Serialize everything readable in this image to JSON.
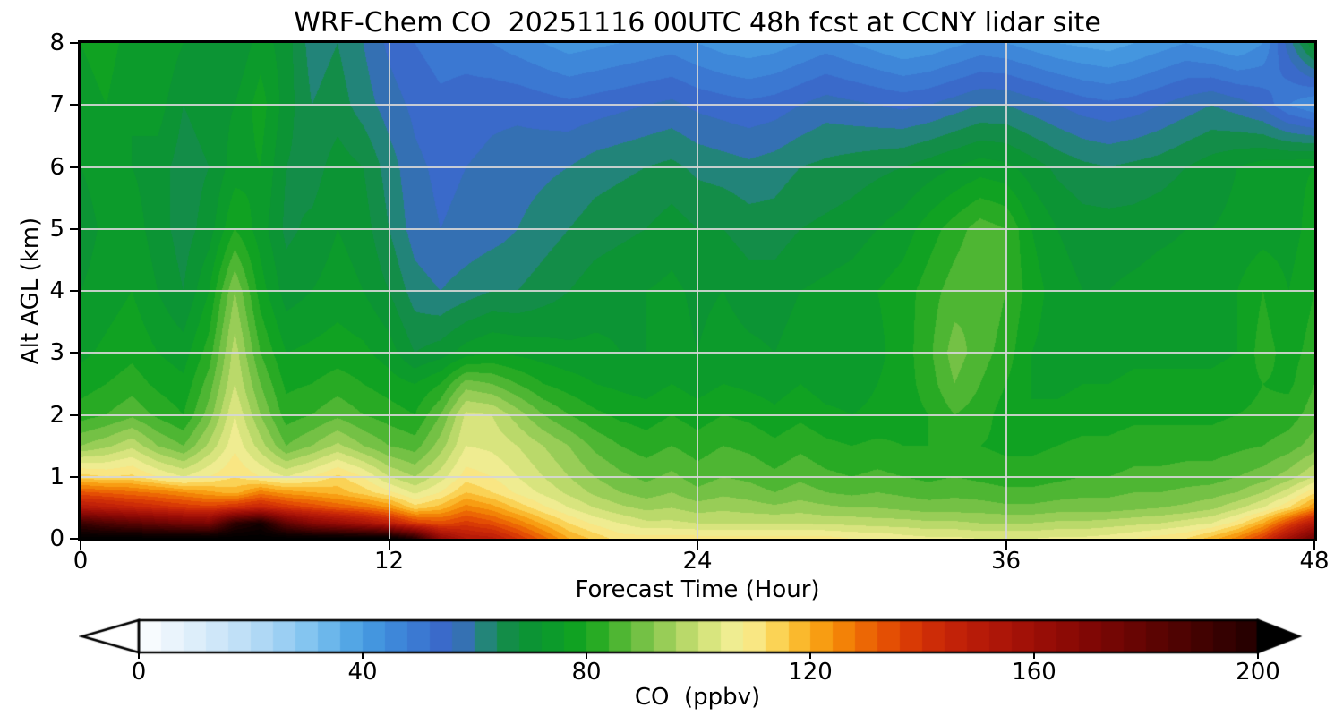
{
  "title": "WRF-Chem CO  20251116 00UTC 48h fcst at CCNY lidar site",
  "axes": {
    "x": {
      "label": "Forecast Time (Hour)",
      "ticks": [
        0,
        12,
        24,
        36,
        48
      ],
      "range": [
        0,
        48
      ]
    },
    "y": {
      "label": "Alt AGL (km)",
      "ticks": [
        0,
        1,
        2,
        3,
        4,
        5,
        6,
        7,
        8
      ],
      "range": [
        0,
        8
      ]
    }
  },
  "colorbar": {
    "label": "CO  (ppbv)",
    "ticks": [
      0,
      40,
      80,
      120,
      160,
      200
    ],
    "range": [
      0,
      200
    ],
    "extend": "both",
    "under_color": "#ffffff",
    "over_color": "#000000",
    "band_step_ppbv": 4
  },
  "colors": {
    "background": "#ffffff",
    "text": "#000000",
    "grid": "#d6d6d6",
    "axis": "#000000"
  },
  "chart_data": {
    "type": "heatmap",
    "title": "WRF-Chem CO  20251116 00UTC 48h fcst at CCNY lidar site",
    "xlabel": "Forecast Time (Hour)",
    "ylabel": "Alt AGL (km)",
    "values_unit": "ppbv",
    "xlim": [
      0,
      48
    ],
    "ylim": [
      0,
      8
    ],
    "grid": {
      "x_hours": [
        12,
        24,
        36
      ],
      "y_alt_km": [
        1,
        2,
        3,
        4,
        5,
        6,
        7
      ]
    },
    "x_hours": [
      0,
      1,
      2,
      3,
      4,
      5,
      6,
      7,
      8,
      9,
      10,
      11,
      12,
      13,
      14,
      15,
      16,
      17,
      18,
      19,
      20,
      21,
      22,
      23,
      24,
      25,
      26,
      27,
      28,
      29,
      30,
      31,
      32,
      33,
      34,
      35,
      36,
      37,
      38,
      39,
      40,
      41,
      42,
      43,
      44,
      45,
      46,
      47,
      48
    ],
    "y_alt_km": [
      0,
      0.25,
      0.5,
      0.75,
      1,
      1.5,
      2,
      2.5,
      3,
      4,
      5,
      6,
      7,
      8
    ],
    "co_ppbv": [
      [
        215,
        215,
        215,
        215,
        215,
        215,
        215,
        215,
        215,
        215,
        215,
        215,
        215,
        200,
        165,
        152,
        150,
        140,
        130,
        120,
        115,
        110,
        110,
        110,
        110,
        110,
        110,
        110,
        110,
        110,
        108,
        108,
        106,
        105,
        105,
        104,
        104,
        104,
        105,
        105,
        106,
        108,
        110,
        112,
        118,
        126,
        138,
        158,
        178
      ],
      [
        192,
        186,
        182,
        178,
        174,
        172,
        196,
        204,
        180,
        168,
        162,
        156,
        148,
        138,
        134,
        138,
        134,
        127,
        119,
        112,
        107,
        104,
        101,
        101,
        100,
        100,
        100,
        100,
        100,
        99,
        99,
        98,
        98,
        97,
        97,
        96,
        96,
        96,
        97,
        97,
        98,
        99,
        100,
        102,
        104,
        110,
        120,
        136,
        152
      ],
      [
        152,
        149,
        146,
        143,
        140,
        138,
        142,
        146,
        140,
        136,
        132,
        129,
        124,
        114,
        118,
        126,
        122,
        115,
        109,
        104,
        100,
        97,
        95,
        96,
        94,
        95,
        94,
        93,
        94,
        93,
        92,
        92,
        91,
        90,
        90,
        90,
        89,
        89,
        90,
        90,
        90,
        91,
        92,
        93,
        95,
        99,
        104,
        112,
        124
      ],
      [
        133,
        131,
        129,
        127,
        124,
        121,
        118,
        126,
        122,
        120,
        118,
        114,
        109,
        103,
        108,
        116,
        112,
        107,
        103,
        99,
        95,
        92,
        90,
        92,
        89,
        91,
        90,
        88,
        90,
        88,
        87,
        88,
        87,
        86,
        87,
        86,
        85,
        85,
        86,
        87,
        87,
        88,
        88,
        89,
        90,
        92,
        96,
        102,
        111
      ],
      [
        114,
        112,
        113,
        108,
        104,
        108,
        112,
        108,
        104,
        108,
        113,
        108,
        100,
        96,
        102,
        110,
        108,
        104,
        100,
        96,
        92,
        89,
        87,
        89,
        86,
        88,
        87,
        85,
        87,
        85,
        84,
        85,
        84,
        83,
        84,
        83,
        82,
        82,
        83,
        84,
        84,
        85,
        85,
        86,
        86,
        88,
        90,
        94,
        100
      ],
      [
        92,
        95,
        99,
        92,
        88,
        97,
        107,
        98,
        88,
        92,
        97,
        92,
        88,
        86,
        94,
        104,
        103,
        100,
        96,
        92,
        87,
        84,
        82,
        84,
        82,
        84,
        83,
        81,
        83,
        81,
        80,
        81,
        80,
        80,
        81,
        80,
        79,
        79,
        80,
        81,
        81,
        82,
        82,
        82,
        82,
        83,
        84,
        86,
        90
      ],
      [
        82,
        84,
        87,
        83,
        80,
        90,
        104,
        92,
        82,
        84,
        87,
        84,
        82,
        80,
        88,
        101,
        100,
        94,
        88,
        84,
        81,
        79,
        78,
        80,
        78,
        80,
        79,
        77,
        79,
        77,
        76,
        77,
        78,
        80,
        84,
        82,
        78,
        76,
        77,
        78,
        78,
        79,
        79,
        79,
        79,
        80,
        81,
        82,
        86
      ],
      [
        78,
        80,
        82,
        79,
        77,
        86,
        100,
        88,
        79,
        80,
        82,
        80,
        78,
        76,
        80,
        90,
        88,
        84,
        80,
        78,
        76,
        75,
        74,
        76,
        74,
        76,
        75,
        74,
        76,
        74,
        74,
        76,
        78,
        82,
        88,
        84,
        80,
        76,
        75,
        76,
        76,
        77,
        77,
        77,
        77,
        78,
        80,
        79,
        84
      ],
      [
        75,
        77,
        79,
        76,
        74,
        82,
        98,
        84,
        76,
        77,
        78,
        77,
        74,
        68,
        70,
        74,
        76,
        75,
        74,
        73,
        73,
        72,
        72,
        74,
        72,
        74,
        73,
        72,
        74,
        73,
        73,
        75,
        78,
        83,
        90,
        86,
        82,
        76,
        74,
        74,
        74,
        75,
        75,
        75,
        75,
        76,
        82,
        78,
        82
      ],
      [
        72,
        74,
        76,
        72,
        68,
        76,
        92,
        78,
        70,
        72,
        74,
        72,
        68,
        62,
        60,
        62,
        64,
        64,
        66,
        68,
        70,
        71,
        72,
        73,
        71,
        72,
        70,
        70,
        72,
        73,
        74,
        76,
        78,
        82,
        86,
        88,
        84,
        78,
        74,
        72,
        72,
        73,
        74,
        74,
        74,
        76,
        80,
        76,
        80
      ],
      [
        70,
        73,
        74,
        70,
        66,
        70,
        80,
        74,
        67,
        69,
        72,
        70,
        64,
        58,
        56,
        57,
        58,
        60,
        62,
        64,
        66,
        67,
        68,
        70,
        68,
        68,
        66,
        66,
        68,
        69,
        70,
        72,
        74,
        78,
        82,
        86,
        84,
        76,
        72,
        70,
        70,
        70,
        71,
        72,
        72,
        73,
        74,
        74,
        78
      ],
      [
        72,
        74,
        72,
        70,
        66,
        68,
        74,
        76,
        68,
        66,
        70,
        68,
        62,
        57,
        55,
        56,
        57,
        58,
        59,
        60,
        62,
        63,
        64,
        65,
        63,
        62,
        61,
        62,
        64,
        65,
        66,
        67,
        68,
        70,
        72,
        74,
        73,
        70,
        67,
        65,
        64,
        65,
        66,
        68,
        70,
        72,
        74,
        75,
        76
      ],
      [
        74,
        76,
        72,
        74,
        68,
        70,
        72,
        78,
        70,
        64,
        66,
        62,
        58,
        55,
        53,
        54,
        55,
        55,
        54,
        53,
        54,
        55,
        56,
        57,
        55,
        54,
        53,
        54,
        56,
        58,
        57,
        56,
        55,
        56,
        58,
        60,
        60,
        58,
        56,
        54,
        53,
        54,
        56,
        58,
        60,
        58,
        55,
        48,
        44
      ],
      [
        76,
        78,
        74,
        76,
        72,
        70,
        68,
        74,
        70,
        62,
        64,
        60,
        55,
        52,
        50,
        50,
        48,
        46,
        44,
        42,
        43,
        44,
        45,
        46,
        44,
        42,
        41,
        42,
        44,
        46,
        44,
        42,
        40,
        41,
        43,
        45,
        44,
        42,
        40,
        39,
        38,
        40,
        42,
        44,
        42,
        40,
        44,
        58,
        72
      ]
    ],
    "colormap_stops": [
      [
        -10,
        "#ffffff"
      ],
      [
        0,
        "#fdfeff"
      ],
      [
        8,
        "#e4f1fb"
      ],
      [
        16,
        "#c8e4f8"
      ],
      [
        24,
        "#a6d4f4"
      ],
      [
        32,
        "#78c0ee"
      ],
      [
        40,
        "#479de2"
      ],
      [
        48,
        "#3b80d6"
      ],
      [
        56,
        "#3a62c6"
      ],
      [
        60,
        "#2f7fa0"
      ],
      [
        64,
        "#168a52"
      ],
      [
        70,
        "#0c9434"
      ],
      [
        76,
        "#0c9e26"
      ],
      [
        80,
        "#14a51e"
      ],
      [
        84,
        "#3bb02a"
      ],
      [
        88,
        "#62bb3c"
      ],
      [
        92,
        "#86c74e"
      ],
      [
        96,
        "#aad360"
      ],
      [
        100,
        "#cadf74"
      ],
      [
        104,
        "#e6ea88"
      ],
      [
        108,
        "#f8ef9a"
      ],
      [
        112,
        "#fade6c"
      ],
      [
        116,
        "#fbc73e"
      ],
      [
        120,
        "#f9aa1c"
      ],
      [
        124,
        "#f69008"
      ],
      [
        128,
        "#ef7305"
      ],
      [
        132,
        "#e85a04"
      ],
      [
        136,
        "#df4304"
      ],
      [
        140,
        "#d23106"
      ],
      [
        146,
        "#c22208"
      ],
      [
        152,
        "#b21808"
      ],
      [
        160,
        "#9c0e06"
      ],
      [
        168,
        "#860805"
      ],
      [
        176,
        "#6e0503"
      ],
      [
        184,
        "#550302"
      ],
      [
        192,
        "#3b0101"
      ],
      [
        200,
        "#210000"
      ],
      [
        208,
        "#0a0000"
      ],
      [
        216,
        "#000000"
      ]
    ]
  }
}
